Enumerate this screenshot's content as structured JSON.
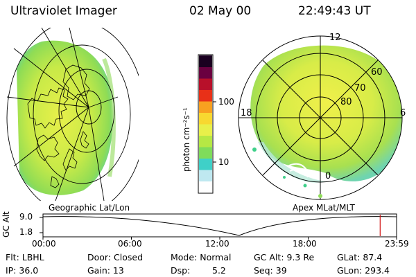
{
  "header": {
    "title": "Ultraviolet Imager",
    "date": "02 May 00",
    "time": "22:49:43 UT"
  },
  "colorbar": {
    "label": "photon cm⁻²s⁻¹",
    "ticks": [
      "100",
      "10"
    ],
    "colors": [
      "#ffffff",
      "#bfe8f0",
      "#3fd0c8",
      "#7fdc5a",
      "#b6e844",
      "#e8f04a",
      "#f8d830",
      "#f8a020",
      "#e83018",
      "#b8102a",
      "#6a0040",
      "#1a0020"
    ]
  },
  "polar": {
    "mlt_labels": [
      "12",
      "18",
      "6",
      "0"
    ],
    "lat_labels": [
      "60",
      "70",
      "80"
    ]
  },
  "map_labels": {
    "left": "Geographic Lat/Lon",
    "right": "Apex MLat/MLT"
  },
  "timeline": {
    "axis_label": "GC Alt",
    "y_ticks": [
      "9.0",
      "1.8"
    ],
    "x_ticks": [
      "00:00",
      "06:00",
      "12:00",
      "18:00",
      "23:59"
    ],
    "current_fraction": 0.9535
  },
  "info": {
    "flt": "Flt: LBHL",
    "ip": "IP: 36.0",
    "door": "Door: Closed",
    "gain": "Gain: 13",
    "mode": "Mode: Normal",
    "dsp_label": "Dsp:",
    "dsp_value": "5.2",
    "gc_alt": "GC Alt: 9.3 Re",
    "seq": "Seq: 39",
    "glat": "GLat: 87.4",
    "glon": "GLon: 293.4"
  }
}
